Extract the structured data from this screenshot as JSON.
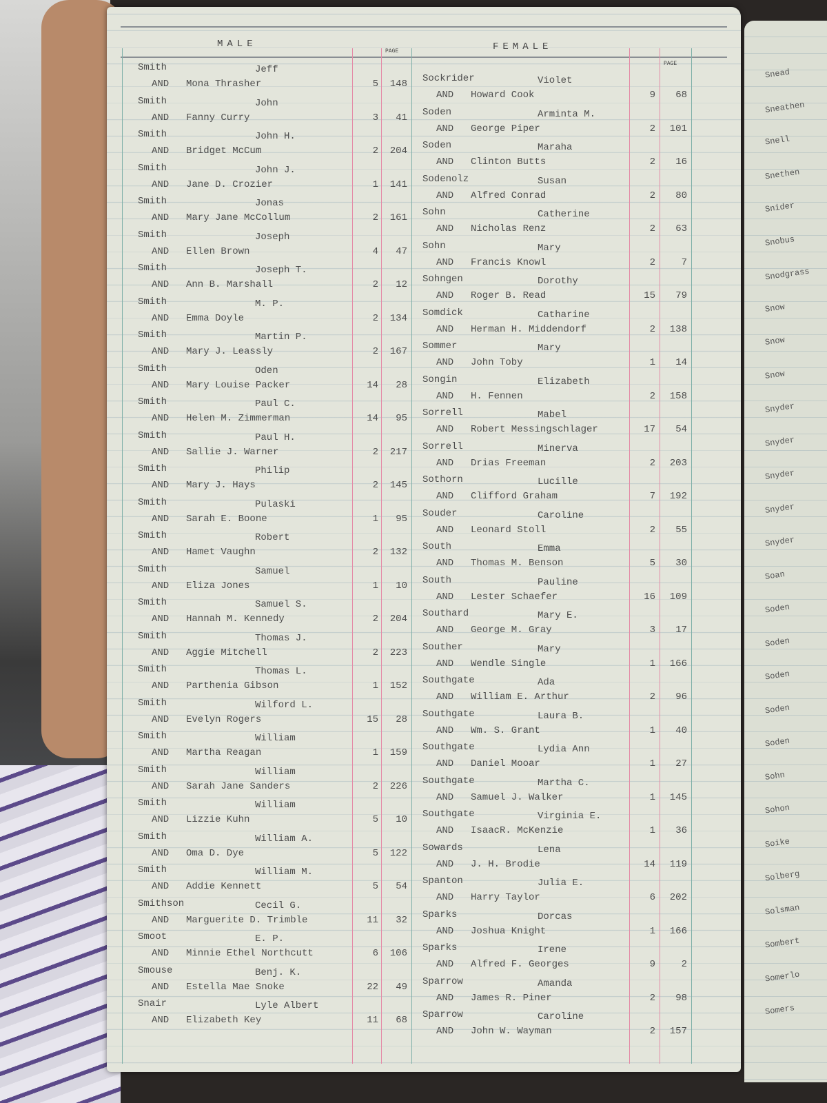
{
  "header": {
    "male": "MALE",
    "female": "FEMALE",
    "page_col": "PAGE"
  },
  "male": {
    "entries": [
      {
        "surname": "Smith",
        "given": "Jeff",
        "and": "AND",
        "spouse": "Mona Thrasher",
        "book": "5",
        "page": "148"
      },
      {
        "surname": "Smith",
        "given": "John",
        "and": "AND",
        "spouse": "Fanny Curry",
        "book": "3",
        "page": "41"
      },
      {
        "surname": "Smith",
        "given": "John H.",
        "and": "AND",
        "spouse": "Bridget McCum",
        "book": "2",
        "page": "204"
      },
      {
        "surname": "Smith",
        "given": "John J.",
        "and": "AND",
        "spouse": "Jane D. Crozier",
        "book": "1",
        "page": "141"
      },
      {
        "surname": "Smith",
        "given": "Jonas",
        "and": "AND",
        "spouse": "Mary Jane McCollum",
        "book": "2",
        "page": "161"
      },
      {
        "surname": "Smith",
        "given": "Joseph",
        "and": "AND",
        "spouse": "Ellen Brown",
        "book": "4",
        "page": "47"
      },
      {
        "surname": "Smith",
        "given": "Joseph T.",
        "and": "AND",
        "spouse": "Ann B. Marshall",
        "book": "2",
        "page": "12"
      },
      {
        "surname": "Smith",
        "given": "M. P.",
        "and": "AND",
        "spouse": "Emma Doyle",
        "book": "2",
        "page": "134"
      },
      {
        "surname": "Smith",
        "given": "Martin P.",
        "and": "AND",
        "spouse": "Mary J. Leassly",
        "book": "2",
        "page": "167"
      },
      {
        "surname": "Smith",
        "given": "Oden",
        "and": "AND",
        "spouse": "Mary Louise Packer",
        "book": "14",
        "page": "28"
      },
      {
        "surname": "Smith",
        "given": "Paul C.",
        "and": "AND",
        "spouse": "Helen M. Zimmerman",
        "book": "14",
        "page": "95"
      },
      {
        "surname": "Smith",
        "given": "Paul H.",
        "and": "AND",
        "spouse": "Sallie J. Warner",
        "book": "2",
        "page": "217"
      },
      {
        "surname": "Smith",
        "given": "Philip",
        "and": "AND",
        "spouse": "Mary J. Hays",
        "book": "2",
        "page": "145"
      },
      {
        "surname": "Smith",
        "given": "Pulaski",
        "and": "AND",
        "spouse": "Sarah E. Boone",
        "book": "1",
        "page": "95"
      },
      {
        "surname": "Smith",
        "given": "Robert",
        "and": "AND",
        "spouse": "Hamet Vaughn",
        "book": "2",
        "page": "132"
      },
      {
        "surname": "Smith",
        "given": "Samuel",
        "and": "AND",
        "spouse": "Eliza Jones",
        "book": "1",
        "page": "10"
      },
      {
        "surname": "Smith",
        "given": "Samuel S.",
        "and": "AND",
        "spouse": "Hannah M. Kennedy",
        "book": "2",
        "page": "204"
      },
      {
        "surname": "Smith",
        "given": "Thomas J.",
        "and": "AND",
        "spouse": "Aggie Mitchell",
        "book": "2",
        "page": "223"
      },
      {
        "surname": "Smith",
        "given": "Thomas L.",
        "and": "AND",
        "spouse": "Parthenia Gibson",
        "book": "1",
        "page": "152"
      },
      {
        "surname": "Smith",
        "given": "Wilford L.",
        "and": "AND",
        "spouse": "Evelyn Rogers",
        "book": "15",
        "page": "28"
      },
      {
        "surname": "Smith",
        "given": "William",
        "and": "AND",
        "spouse": "Martha Reagan",
        "book": "1",
        "page": "159"
      },
      {
        "surname": "Smith",
        "given": "William",
        "and": "AND",
        "spouse": "Sarah Jane Sanders",
        "book": "2",
        "page": "226"
      },
      {
        "surname": "Smith",
        "given": "William",
        "and": "AND",
        "spouse": "Lizzie Kuhn",
        "book": "5",
        "page": "10"
      },
      {
        "surname": "Smith",
        "given": "William A.",
        "and": "AND",
        "spouse": "Oma D. Dye",
        "book": "5",
        "page": "122"
      },
      {
        "surname": "Smith",
        "given": "William M.",
        "and": "AND",
        "spouse": "Addie Kennett",
        "book": "5",
        "page": "54"
      },
      {
        "surname": "Smithson",
        "given": "Cecil G.",
        "and": "AND",
        "spouse": "Marguerite D. Trimble",
        "book": "11",
        "page": "32"
      },
      {
        "surname": "Smoot",
        "given": "E. P.",
        "and": "AND",
        "spouse": "Minnie Ethel Northcutt",
        "book": "6",
        "page": "106"
      },
      {
        "surname": "Smouse",
        "given": "Benj. K.",
        "and": "AND",
        "spouse": "Estella Mae Snoke",
        "book": "22",
        "page": "49"
      },
      {
        "surname": "Snair",
        "given": "Lyle Albert",
        "and": "AND",
        "spouse": "Elizabeth Key",
        "book": "11",
        "page": "68"
      }
    ]
  },
  "female": {
    "entries": [
      {
        "surname": "Sockrider",
        "given": "Violet",
        "and": "AND",
        "spouse": "Howard Cook",
        "book": "9",
        "page": "68"
      },
      {
        "surname": "Soden",
        "given": "Arminta M.",
        "and": "AND",
        "spouse": "George Piper",
        "book": "2",
        "page": "101"
      },
      {
        "surname": "Soden",
        "given": "Maraha",
        "and": "AND",
        "spouse": "Clinton Butts",
        "book": "2",
        "page": "16"
      },
      {
        "surname": "Sodenolz",
        "given": "Susan",
        "and": "AND",
        "spouse": "Alfred Conrad",
        "book": "2",
        "page": "80"
      },
      {
        "surname": "Sohn",
        "given": "Catherine",
        "and": "AND",
        "spouse": "Nicholas Renz",
        "book": "2",
        "page": "63"
      },
      {
        "surname": "Sohn",
        "given": "Mary",
        "and": "AND",
        "spouse": "Francis Knowl",
        "book": "2",
        "page": "7"
      },
      {
        "surname": "Sohngen",
        "given": "Dorothy",
        "and": "AND",
        "spouse": "Roger B. Read",
        "book": "15",
        "page": "79"
      },
      {
        "surname": "Somdick",
        "given": "Catharine",
        "and": "AND",
        "spouse": "Herman H. Middendorf",
        "book": "2",
        "page": "138"
      },
      {
        "surname": "Sommer",
        "given": "Mary",
        "and": "AND",
        "spouse": "John Toby",
        "book": "1",
        "page": "14"
      },
      {
        "surname": "Songin",
        "given": "Elizabeth",
        "and": "AND",
        "spouse": "H. Fennen",
        "book": "2",
        "page": "158"
      },
      {
        "surname": "Sorrell",
        "given": "Mabel",
        "and": "AND",
        "spouse": "Robert Messingschlager",
        "book": "17",
        "page": "54"
      },
      {
        "surname": "Sorrell",
        "given": "Minerva",
        "and": "AND",
        "spouse": "Drias Freeman",
        "book": "2",
        "page": "203"
      },
      {
        "surname": "Sothorn",
        "given": "Lucille",
        "and": "AND",
        "spouse": "Clifford Graham",
        "book": "7",
        "page": "192"
      },
      {
        "surname": "Souder",
        "given": "Caroline",
        "and": "AND",
        "spouse": "Leonard Stoll",
        "book": "2",
        "page": "55"
      },
      {
        "surname": "South",
        "given": "Emma",
        "and": "AND",
        "spouse": "Thomas M. Benson",
        "book": "5",
        "page": "30"
      },
      {
        "surname": "South",
        "given": "Pauline",
        "and": "AND",
        "spouse": "Lester Schaefer",
        "book": "16",
        "page": "109"
      },
      {
        "surname": "Southard",
        "given": "Mary E.",
        "and": "AND",
        "spouse": "George M. Gray",
        "book": "3",
        "page": "17"
      },
      {
        "surname": "Souther",
        "given": "Mary",
        "and": "AND",
        "spouse": "Wendle Single",
        "book": "1",
        "page": "166"
      },
      {
        "surname": "Southgate",
        "given": "Ada",
        "and": "AND",
        "spouse": "William E. Arthur",
        "book": "2",
        "page": "96"
      },
      {
        "surname": "Southgate",
        "given": "Laura B.",
        "and": "AND",
        "spouse": "Wm. S. Grant",
        "book": "1",
        "page": "40"
      },
      {
        "surname": "Southgate",
        "given": "Lydia Ann",
        "and": "AND",
        "spouse": "Daniel Mooar",
        "book": "1",
        "page": "27"
      },
      {
        "surname": "Southgate",
        "given": "Martha C.",
        "and": "AND",
        "spouse": "Samuel J. Walker",
        "book": "1",
        "page": "145"
      },
      {
        "surname": "Southgate",
        "given": "Virginia E.",
        "and": "AND",
        "spouse": "IsaacR. McKenzie",
        "book": "1",
        "page": "36"
      },
      {
        "surname": "Sowards",
        "given": "Lena",
        "and": "AND",
        "spouse": "J. H. Brodie",
        "book": "14",
        "page": "119"
      },
      {
        "surname": "Spanton",
        "given": "Julia E.",
        "and": "AND",
        "spouse": "Harry Taylor",
        "book": "6",
        "page": "202"
      },
      {
        "surname": "Sparks",
        "given": "Dorcas",
        "and": "AND",
        "spouse": "Joshua Knight",
        "book": "1",
        "page": "166"
      },
      {
        "surname": "Sparks",
        "given": "Irene",
        "and": "AND",
        "spouse": "Alfred F. Georges",
        "book": "9",
        "page": "2"
      },
      {
        "surname": "Sparrow",
        "given": "Amanda",
        "and": "AND",
        "spouse": "James R. Piner",
        "book": "2",
        "page": "98"
      },
      {
        "surname": "Sparrow",
        "given": "Caroline",
        "and": "AND",
        "spouse": "John W. Wayman",
        "book": "2",
        "page": "157"
      }
    ]
  },
  "right_page": {
    "surnames": [
      "Snead",
      "Sneathen",
      "Snell",
      "Snethen",
      "Snider",
      "Snobus",
      "Snodgrass",
      "Snow",
      "Snow",
      "Snow",
      "Snyder",
      "Snyder",
      "Snyder",
      "Snyder",
      "Snyder",
      "Soan",
      "Soden",
      "Soden",
      "Soden",
      "Soden",
      "Soden",
      "Sohn",
      "Sohon",
      "Soike",
      "Solberg",
      "Solsman",
      "Sombert",
      "Somerlo",
      "Somers"
    ]
  }
}
